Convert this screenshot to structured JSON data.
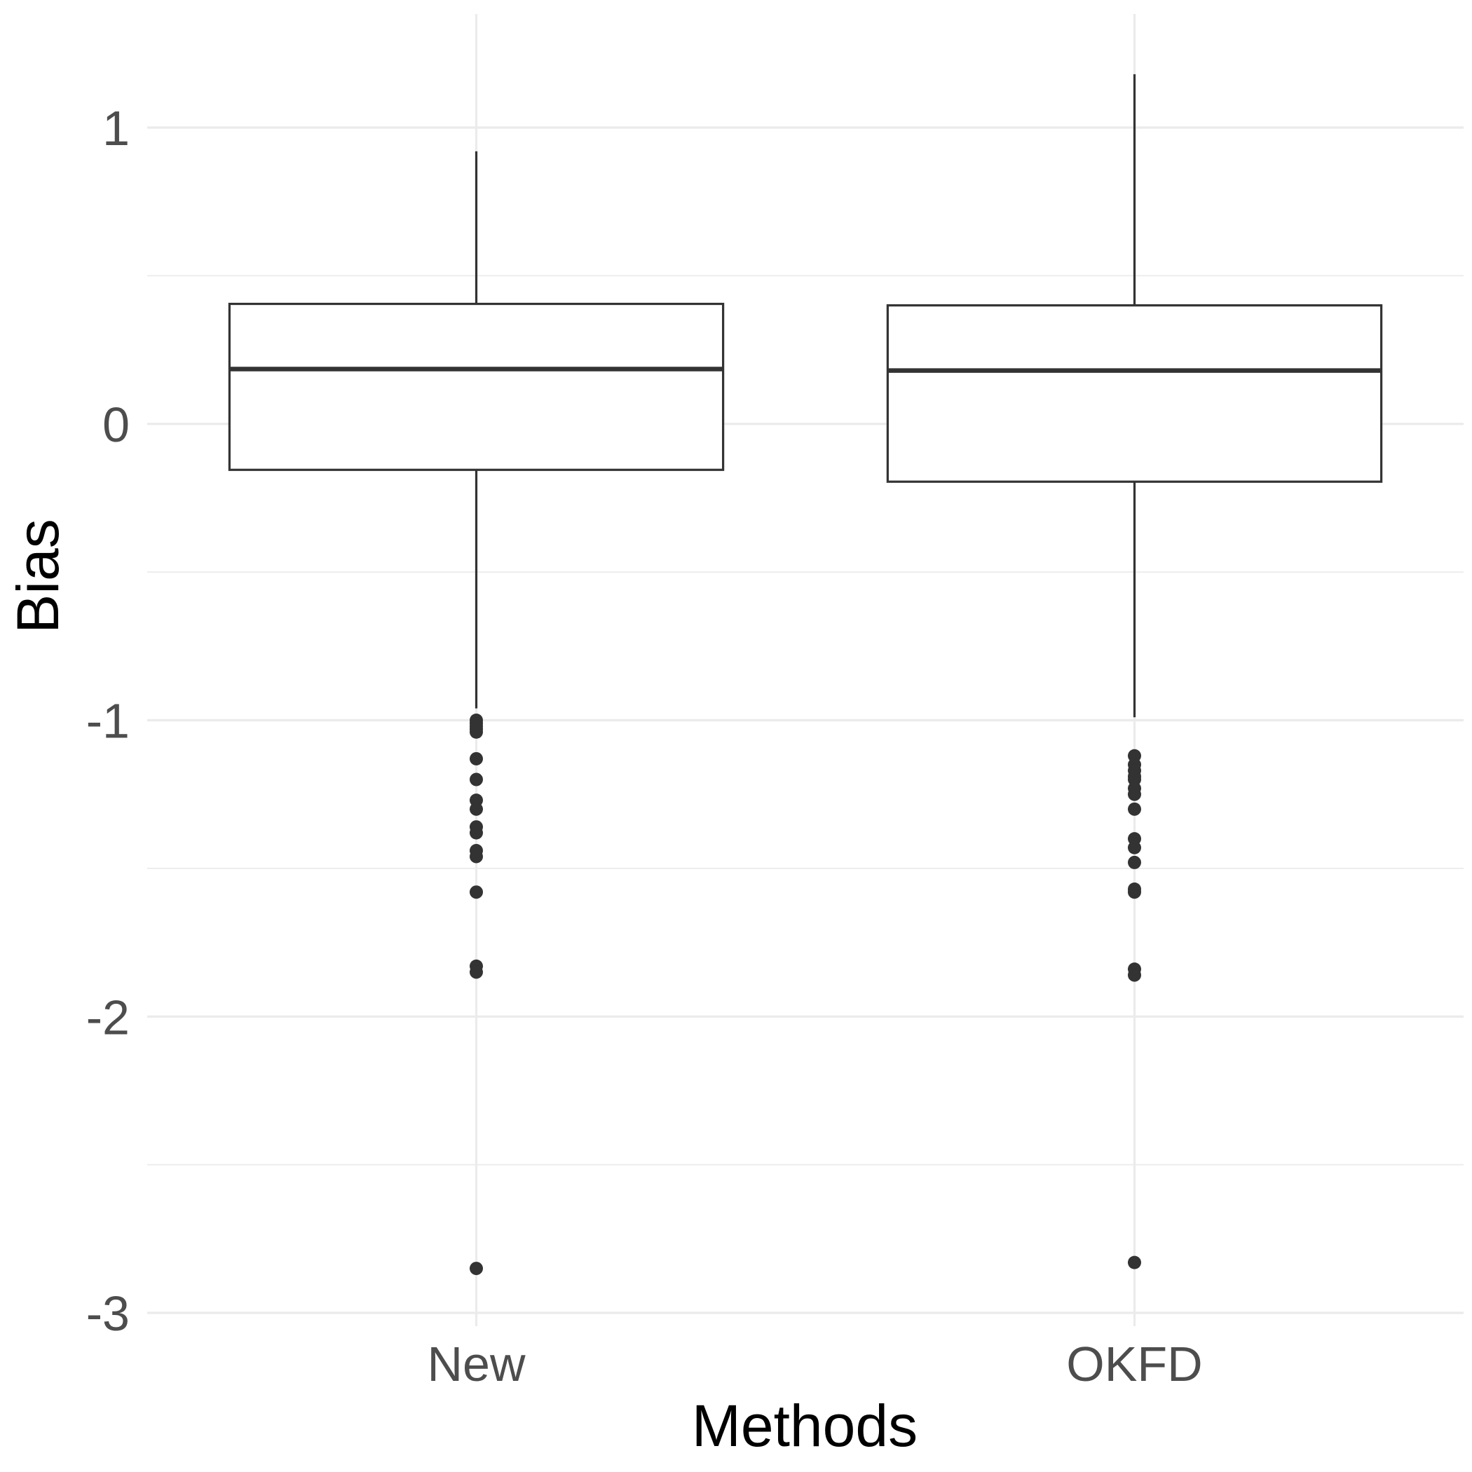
{
  "chart_data": {
    "type": "boxplot",
    "title": "",
    "xlabel": "Methods",
    "ylabel": "Bias",
    "ylim": [
      -3.05,
      1.38
    ],
    "yticks": [
      1,
      0,
      -1,
      -2,
      -3
    ],
    "ytick_labels": [
      "1",
      "0",
      "-1",
      "-2",
      "-3"
    ],
    "grid": true,
    "categories": [
      "New",
      "OKFD"
    ],
    "series": [
      {
        "name": "New",
        "whisker_low": -0.96,
        "q1": -0.155,
        "median": 0.185,
        "q3": 0.405,
        "whisker_high": 0.92,
        "outliers": [
          -1.0,
          -1.01,
          -1.02,
          -1.03,
          -1.04,
          -1.13,
          -1.2,
          -1.27,
          -1.3,
          -1.36,
          -1.38,
          -1.44,
          -1.46,
          -1.58,
          -1.83,
          -1.85,
          -2.85
        ]
      },
      {
        "name": "OKFD",
        "whisker_low": -0.99,
        "q1": -0.195,
        "median": 0.18,
        "q3": 0.4,
        "whisker_high": 1.18,
        "outliers": [
          -1.12,
          -1.15,
          -1.17,
          -1.19,
          -1.2,
          -1.23,
          -1.25,
          -1.3,
          -1.4,
          -1.43,
          -1.48,
          -1.57,
          -1.58,
          -1.84,
          -1.86,
          -2.83
        ]
      }
    ]
  }
}
